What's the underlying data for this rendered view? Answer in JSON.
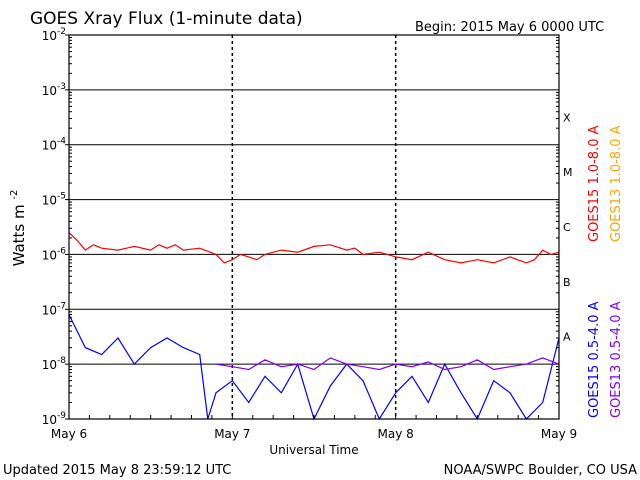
{
  "chart_data": {
    "type": "line",
    "title": "GOES Xray Flux (1-minute data)",
    "begin_label": "Begin:  2015 May 6 0000 UTC",
    "xlabel": "Universal Time",
    "ylabel_main": "Watts m",
    "ylabel_exp": "-2",
    "x_ticks": [
      "May 6",
      "May 7",
      "May 8",
      "May 9"
    ],
    "x_range_days": [
      0,
      3
    ],
    "ylim": [
      1e-09,
      0.01
    ],
    "y_scale": "log",
    "y_ticks": [
      {
        "base": "10",
        "exp": "-2"
      },
      {
        "base": "10",
        "exp": "-3"
      },
      {
        "base": "10",
        "exp": "-4"
      },
      {
        "base": "10",
        "exp": "-5"
      },
      {
        "base": "10",
        "exp": "-6"
      },
      {
        "base": "10",
        "exp": "-7"
      },
      {
        "base": "10",
        "exp": "-8"
      },
      {
        "base": "10",
        "exp": "-9"
      }
    ],
    "flare_classes": [
      "X",
      "M",
      "C",
      "B",
      "A"
    ],
    "legend": [
      {
        "label": "GOES15 1.0-8.0 A",
        "color": "#ff0000"
      },
      {
        "label": "GOES13 1.0-8.0 A",
        "color": "#ffa500"
      },
      {
        "label": "GOES15 0.5-4.0 A",
        "color": "#0000ff"
      },
      {
        "label": "GOES13 0.5-4.0 A",
        "color": "#7f00ff"
      }
    ],
    "series": [
      {
        "name": "GOES15 1.0-8.0 A",
        "color": "#ff0000",
        "x": [
          0,
          0.05,
          0.1,
          0.15,
          0.2,
          0.3,
          0.4,
          0.5,
          0.55,
          0.6,
          0.65,
          0.7,
          0.8,
          0.9,
          0.95,
          1.0,
          1.05,
          1.1,
          1.15,
          1.2,
          1.3,
          1.4,
          1.5,
          1.6,
          1.7,
          1.75,
          1.8,
          1.9,
          1.95,
          2.0,
          2.1,
          2.2,
          2.3,
          2.4,
          2.5,
          2.6,
          2.7,
          2.8,
          2.85,
          2.9,
          2.95,
          3.0
        ],
        "y": [
          2.5e-06,
          1.8e-06,
          1.2e-06,
          1.5e-06,
          1.3e-06,
          1.2e-06,
          1.4e-06,
          1.2e-06,
          1.5e-06,
          1.3e-06,
          1.5e-06,
          1.2e-06,
          1.3e-06,
          1e-06,
          7e-07,
          8e-07,
          1e-06,
          9e-07,
          8e-07,
          1e-06,
          1.2e-06,
          1.1e-06,
          1.4e-06,
          1.5e-06,
          1.2e-06,
          1.3e-06,
          1e-06,
          1.1e-06,
          1e-06,
          9e-07,
          8e-07,
          1.1e-06,
          8e-07,
          7e-07,
          8e-07,
          7e-07,
          9e-07,
          7e-07,
          8e-07,
          1.2e-06,
          1e-06,
          1.1e-06
        ]
      },
      {
        "name": "GOES15 0.5-4.0 A",
        "color": "#0000ff",
        "x": [
          0,
          0.1,
          0.2,
          0.3,
          0.4,
          0.5,
          0.6,
          0.7,
          0.8,
          0.85,
          0.9,
          1.0,
          1.1,
          1.2,
          1.3,
          1.4,
          1.5,
          1.6,
          1.7,
          1.8,
          1.9,
          2.0,
          2.1,
          2.2,
          2.3,
          2.4,
          2.5,
          2.6,
          2.7,
          2.8,
          2.9,
          3.0
        ],
        "y": [
          8e-08,
          2e-08,
          1.5e-08,
          3e-08,
          1e-08,
          2e-08,
          3e-08,
          2e-08,
          1.5e-08,
          1e-09,
          3e-09,
          5e-09,
          2e-09,
          6e-09,
          3e-09,
          1e-08,
          1e-09,
          4e-09,
          1e-08,
          5e-09,
          1e-09,
          3e-09,
          6e-09,
          2e-09,
          1e-08,
          3e-09,
          1e-09,
          5e-09,
          3e-09,
          1e-09,
          2e-09,
          3e-08
        ]
      },
      {
        "name": "GOES13 0.5-4.0 A",
        "color": "#7f00ff",
        "x": [
          0.9,
          1.0,
          1.1,
          1.2,
          1.3,
          1.4,
          1.5,
          1.6,
          1.7,
          1.8,
          1.9,
          2.0,
          2.1,
          2.2,
          2.3,
          2.4,
          2.5,
          2.6,
          2.7,
          2.8,
          2.9,
          3.0
        ],
        "y": [
          1e-08,
          9e-09,
          8e-09,
          1.2e-08,
          9e-09,
          1e-08,
          8e-09,
          1.3e-08,
          1e-08,
          9e-09,
          8e-09,
          1e-08,
          9e-09,
          1.1e-08,
          8e-09,
          9e-09,
          1.2e-08,
          8e-09,
          9e-09,
          1e-08,
          1.3e-08,
          1e-08
        ]
      }
    ],
    "grid": true
  },
  "footer": {
    "updated": "Updated 2015 May  8 23:59:12 UTC",
    "source": "NOAA/SWPC Boulder, CO USA"
  }
}
